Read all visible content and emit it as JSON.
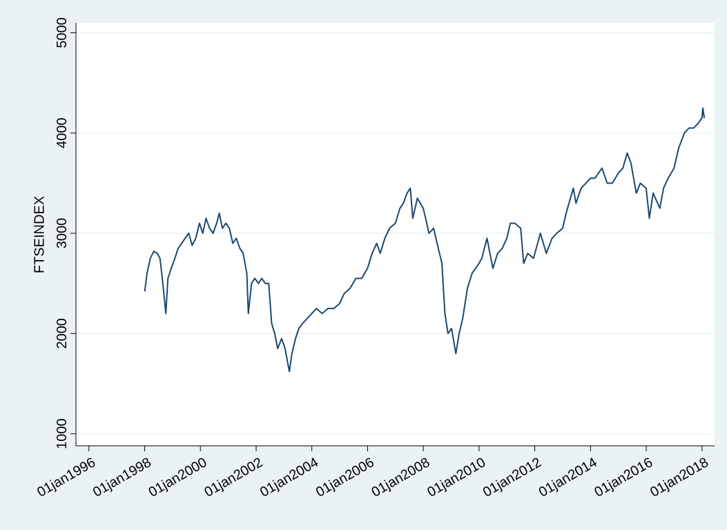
{
  "chart_data": {
    "type": "line",
    "y_label": "FTSEINDEX",
    "x": [
      "1998-01-01",
      "1998-02-01",
      "1998-03-15",
      "1998-05-01",
      "1998-06-15",
      "1998-07-20",
      "1998-08-20",
      "1998-10-05",
      "1998-11-01",
      "1998-12-15",
      "1999-02-01",
      "1999-03-15",
      "1999-05-01",
      "1999-06-15",
      "1999-08-01",
      "1999-09-15",
      "1999-11-01",
      "1999-12-20",
      "2000-02-01",
      "2000-03-15",
      "2000-05-01",
      "2000-06-15",
      "2000-08-01",
      "2000-09-05",
      "2000-10-15",
      "2000-12-01",
      "2001-01-15",
      "2001-03-01",
      "2001-04-15",
      "2001-06-01",
      "2001-07-15",
      "2001-09-01",
      "2001-09-21",
      "2001-11-01",
      "2001-12-15",
      "2002-02-01",
      "2002-03-15",
      "2002-05-01",
      "2002-06-15",
      "2002-07-24",
      "2002-09-01",
      "2002-10-10",
      "2002-12-01",
      "2003-01-15",
      "2003-03-12",
      "2003-04-15",
      "2003-06-01",
      "2003-07-15",
      "2003-09-01",
      "2003-11-01",
      "2003-12-31",
      "2004-03-01",
      "2004-05-15",
      "2004-08-01",
      "2004-10-15",
      "2004-12-31",
      "2005-03-01",
      "2005-05-15",
      "2005-08-01",
      "2005-10-15",
      "2005-12-31",
      "2006-03-01",
      "2006-05-01",
      "2006-06-15",
      "2006-08-15",
      "2006-10-15",
      "2006-12-31",
      "2007-03-01",
      "2007-04-15",
      "2007-06-01",
      "2007-07-15",
      "2007-08-16",
      "2007-10-15",
      "2007-12-31",
      "2008-02-01",
      "2008-03-15",
      "2008-05-15",
      "2008-07-15",
      "2008-09-01",
      "2008-10-10",
      "2008-11-20",
      "2009-01-05",
      "2009-03-03",
      "2009-04-15",
      "2009-06-01",
      "2009-08-01",
      "2009-10-01",
      "2009-12-31",
      "2010-02-05",
      "2010-04-15",
      "2010-07-01",
      "2010-09-01",
      "2010-11-01",
      "2010-12-31",
      "2011-02-15",
      "2011-04-15",
      "2011-07-01",
      "2011-08-09",
      "2011-10-01",
      "2011-12-15",
      "2012-03-15",
      "2012-06-01",
      "2012-08-15",
      "2012-10-15",
      "2012-12-31",
      "2013-02-15",
      "2013-05-20",
      "2013-06-24",
      "2013-09-01",
      "2013-11-01",
      "2013-12-31",
      "2014-03-01",
      "2014-06-01",
      "2014-08-07",
      "2014-10-15",
      "2014-12-31",
      "2015-03-01",
      "2015-04-27",
      "2015-06-15",
      "2015-08-24",
      "2015-10-15",
      "2015-12-31",
      "2016-02-11",
      "2016-04-01",
      "2016-06-27",
      "2016-08-15",
      "2016-10-15",
      "2016-12-31",
      "2017-03-01",
      "2017-05-15",
      "2017-07-15",
      "2017-09-15",
      "2017-11-15",
      "2017-12-31",
      "2018-01-12",
      "2018-01-31"
    ],
    "series": [
      {
        "name": "FTSEINDEX",
        "color": "#1a476f",
        "values": [
          2420,
          2600,
          2750,
          2820,
          2800,
          2750,
          2550,
          2200,
          2550,
          2650,
          2750,
          2850,
          2900,
          2950,
          3000,
          2880,
          2950,
          3100,
          3000,
          3150,
          3050,
          3000,
          3100,
          3200,
          3050,
          3100,
          3050,
          2900,
          2950,
          2850,
          2800,
          2600,
          2200,
          2500,
          2550,
          2500,
          2550,
          2500,
          2500,
          2100,
          2000,
          1850,
          1950,
          1850,
          1620,
          1800,
          1950,
          2050,
          2100,
          2150,
          2200,
          2250,
          2200,
          2250,
          2250,
          2300,
          2400,
          2450,
          2550,
          2550,
          2650,
          2800,
          2900,
          2800,
          2950,
          3050,
          3100,
          3250,
          3300,
          3400,
          3450,
          3150,
          3350,
          3250,
          3150,
          3000,
          3050,
          2850,
          2700,
          2200,
          2000,
          2050,
          1800,
          2000,
          2150,
          2450,
          2600,
          2700,
          2750,
          2950,
          2650,
          2800,
          2850,
          2950,
          3100,
          3100,
          3050,
          2700,
          2800,
          2750,
          3000,
          2800,
          2950,
          3000,
          3050,
          3200,
          3450,
          3300,
          3450,
          3500,
          3550,
          3550,
          3650,
          3500,
          3500,
          3600,
          3650,
          3800,
          3700,
          3400,
          3500,
          3450,
          3150,
          3400,
          3250,
          3450,
          3550,
          3650,
          3850,
          4000,
          4050,
          4050,
          4100,
          4150,
          4250,
          4150
        ]
      }
    ],
    "xlim": [
      "1995-07-15",
      "2018-06-15"
    ],
    "xticks": [
      {
        "value": "1996-01-01",
        "label": "01jan1996"
      },
      {
        "value": "1998-01-01",
        "label": "01jan1998"
      },
      {
        "value": "2000-01-01",
        "label": "01jan2000"
      },
      {
        "value": "2002-01-01",
        "label": "01jan2002"
      },
      {
        "value": "2004-01-01",
        "label": "01jan2004"
      },
      {
        "value": "2006-01-01",
        "label": "01jan2006"
      },
      {
        "value": "2008-01-01",
        "label": "01jan2008"
      },
      {
        "value": "2010-01-01",
        "label": "01jan2010"
      },
      {
        "value": "2012-01-01",
        "label": "01jan2012"
      },
      {
        "value": "2014-01-01",
        "label": "01jan2014"
      },
      {
        "value": "2016-01-01",
        "label": "01jan2016"
      },
      {
        "value": "2018-01-01",
        "label": "01jan2018"
      }
    ],
    "ylim": [
      880,
      5100
    ],
    "yticks": [
      1000,
      2000,
      3000,
      4000,
      5000
    ],
    "grid": true
  }
}
